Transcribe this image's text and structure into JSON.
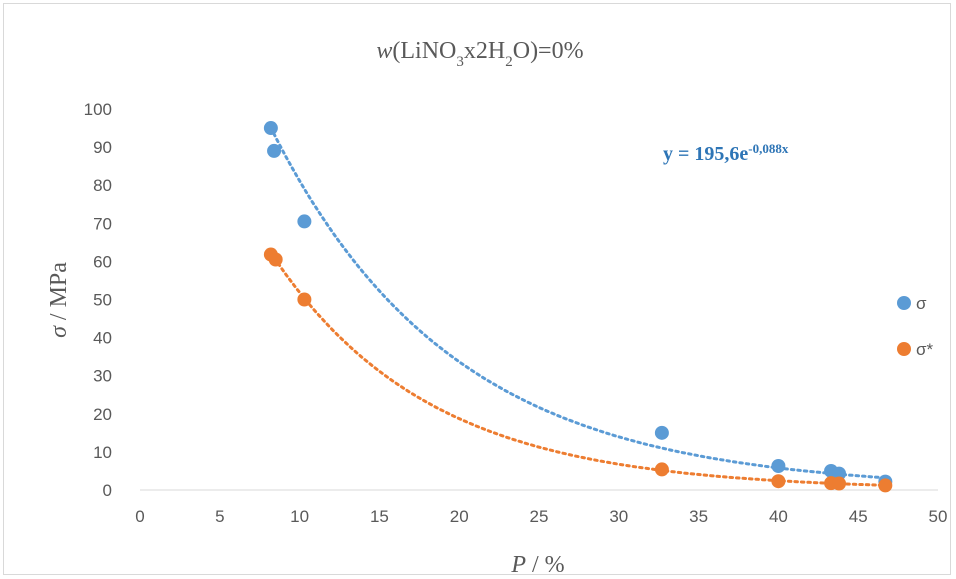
{
  "chart_data": {
    "type": "scatter",
    "title": {
      "italic_var": "w",
      "pre": "(LiNO",
      "sub1": "3",
      "mid": "x2H",
      "sub2": "2",
      "post": "O)=0%"
    },
    "xlabel": {
      "italic": "P",
      "rest": " / %"
    },
    "ylabel": {
      "italic": "σ",
      "rest": " / MPa"
    },
    "xlim": [
      0,
      50
    ],
    "ylim": [
      0,
      100
    ],
    "xticks": [
      0,
      5,
      10,
      15,
      20,
      25,
      30,
      35,
      40,
      45,
      50
    ],
    "yticks": [
      0,
      10,
      20,
      30,
      40,
      50,
      60,
      70,
      80,
      90,
      100
    ],
    "grid": false,
    "legend_position": "right",
    "series": [
      {
        "name": "σ",
        "color": "#5b9bd5",
        "points": [
          {
            "x": 8.2,
            "y": 95
          },
          {
            "x": 8.4,
            "y": 89
          },
          {
            "x": 10.3,
            "y": 70.5
          },
          {
            "x": 32.7,
            "y": 15
          },
          {
            "x": 40.0,
            "y": 6.3
          },
          {
            "x": 43.3,
            "y": 5
          },
          {
            "x": 43.8,
            "y": 4.3
          },
          {
            "x": 46.7,
            "y": 2.2
          }
        ],
        "trendline": {
          "type": "exponential",
          "a": 195.6,
          "b": -0.088
        }
      },
      {
        "name": "σ*",
        "color": "#ed7d31",
        "points": [
          {
            "x": 8.2,
            "y": 61.8
          },
          {
            "x": 8.5,
            "y": 60.5
          },
          {
            "x": 10.3,
            "y": 50
          },
          {
            "x": 32.7,
            "y": 5.4
          },
          {
            "x": 40.0,
            "y": 2.3
          },
          {
            "x": 43.3,
            "y": 1.8
          },
          {
            "x": 43.8,
            "y": 1.7
          },
          {
            "x": 46.7,
            "y": 1.2
          }
        ],
        "trendline": {
          "type": "exponential"
        }
      }
    ],
    "annotation": {
      "pre": "y = 195,6e",
      "sup": "-0,088x"
    }
  }
}
